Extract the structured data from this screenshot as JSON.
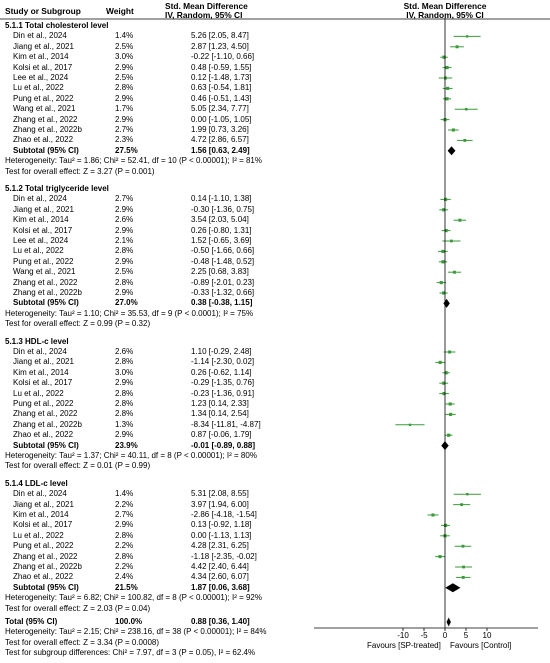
{
  "header": {
    "study_col": "Study or Subgroup",
    "weight_col": "Weight",
    "smd_title": "Std. Mean Difference",
    "smd_sub": "IV, Random, 95% CI",
    "plot_title": "Std. Mean Difference",
    "plot_sub": "IV, Random, 95% CI"
  },
  "axis": {
    "min": -15,
    "max": 15,
    "ticks": [
      "-10",
      "-5",
      "0",
      "5",
      "10"
    ],
    "tick_values": [
      -10,
      -5,
      0,
      5,
      10
    ],
    "left_label": "Favours [SP-treated]",
    "right_label": "Favours [Control]"
  },
  "colors": {
    "study_line": "#3a9a3a",
    "study_square": "#3a9a3a",
    "summary": "#000000"
  },
  "chart_data": {
    "type": "forest",
    "xlim": [
      -15,
      15
    ],
    "groups": [
      {
        "title": "5.1.1 Total cholesterol level",
        "studies": [
          {
            "name": "Din et al., 2024",
            "weight": "1.4%",
            "ci_text": "5.26 [2.05, 8.47]",
            "est": 5.26,
            "lo": 2.05,
            "hi": 8.47
          },
          {
            "name": "Jiang et al., 2021",
            "weight": "2.5%",
            "ci_text": "2.87 [1.23, 4.50]",
            "est": 2.87,
            "lo": 1.23,
            "hi": 4.5
          },
          {
            "name": "Kim et al., 2014",
            "weight": "3.0%",
            "ci_text": "-0.22 [-1.10, 0.66]",
            "est": -0.22,
            "lo": -1.1,
            "hi": 0.66
          },
          {
            "name": "Kolsi et al., 2017",
            "weight": "2.9%",
            "ci_text": "0.48 [-0.59, 1.55]",
            "est": 0.48,
            "lo": -0.59,
            "hi": 1.55
          },
          {
            "name": "Lee et al., 2024",
            "weight": "2.5%",
            "ci_text": "0.12 [-1.48, 1.73]",
            "est": 0.12,
            "lo": -1.48,
            "hi": 1.73
          },
          {
            "name": "Lu et al., 2022",
            "weight": "2.8%",
            "ci_text": "0.63 [-0.54, 1.81]",
            "est": 0.63,
            "lo": -0.54,
            "hi": 1.81
          },
          {
            "name": "Pung et al., 2022",
            "weight": "2.9%",
            "ci_text": "0.46 [-0.51, 1.43]",
            "est": 0.46,
            "lo": -0.51,
            "hi": 1.43
          },
          {
            "name": "Wang et al., 2021",
            "weight": "1.7%",
            "ci_text": "5.05 [2.34, 7.77]",
            "est": 5.05,
            "lo": 2.34,
            "hi": 7.77
          },
          {
            "name": "Zhang et al., 2022",
            "weight": "2.9%",
            "ci_text": "0.00 [-1.05, 1.05]",
            "est": 0.0,
            "lo": -1.05,
            "hi": 1.05
          },
          {
            "name": "Zhang et al., 2022b",
            "weight": "2.7%",
            "ci_text": "1.99 [0.73, 3.26]",
            "est": 1.99,
            "lo": 0.73,
            "hi": 3.26
          },
          {
            "name": "Zhao et al., 2022",
            "weight": "2.3%",
            "ci_text": "4.72 [2.86, 6.57]",
            "est": 4.72,
            "lo": 2.86,
            "hi": 6.57
          }
        ],
        "subtotal": {
          "label": "Subtotal (95% CI)",
          "weight": "27.5%",
          "ci_text": "1.56 [0.63, 2.49]",
          "est": 1.56,
          "lo": 0.63,
          "hi": 2.49
        },
        "heterogeneity": "Heterogeneity: Tau² = 1.86; Chi² = 52.41, df = 10 (P < 0.00001); I² = 81%",
        "overall": "Test for overall effect: Z = 3.27 (P = 0.001)"
      },
      {
        "title": "5.1.2 Total triglyceride level",
        "studies": [
          {
            "name": "Din et al., 2024",
            "weight": "2.7%",
            "ci_text": "0.14 [-1.10, 1.38]",
            "est": 0.14,
            "lo": -1.1,
            "hi": 1.38
          },
          {
            "name": "Jiang et al., 2021",
            "weight": "2.9%",
            "ci_text": "-0.30 [-1.36, 0.75]",
            "est": -0.3,
            "lo": -1.36,
            "hi": 0.75
          },
          {
            "name": "Kim et al., 2014",
            "weight": "2.6%",
            "ci_text": "3.54 [2.03, 5.04]",
            "est": 3.54,
            "lo": 2.03,
            "hi": 5.04
          },
          {
            "name": "Kolsi et al., 2017",
            "weight": "2.9%",
            "ci_text": "0.26 [-0.80, 1.31]",
            "est": 0.26,
            "lo": -0.8,
            "hi": 1.31
          },
          {
            "name": "Lee et al., 2024",
            "weight": "2.1%",
            "ci_text": "1.52 [-0.65, 3.69]",
            "est": 1.52,
            "lo": -0.65,
            "hi": 3.69
          },
          {
            "name": "Lu et al., 2022",
            "weight": "2.8%",
            "ci_text": "-0.50 [-1.66, 0.66]",
            "est": -0.5,
            "lo": -1.66,
            "hi": 0.66
          },
          {
            "name": "Pung et al., 2022",
            "weight": "2.9%",
            "ci_text": "-0.48 [-1.48, 0.52]",
            "est": -0.48,
            "lo": -1.48,
            "hi": 0.52
          },
          {
            "name": "Wang et al., 2021",
            "weight": "2.5%",
            "ci_text": "2.25 [0.68, 3.83]",
            "est": 2.25,
            "lo": 0.68,
            "hi": 3.83
          },
          {
            "name": "Zhang et al., 2022",
            "weight": "2.8%",
            "ci_text": "-0.89 [-2.01, 0.23]",
            "est": -0.89,
            "lo": -2.01,
            "hi": 0.23
          },
          {
            "name": "Zhang et al., 2022b",
            "weight": "2.9%",
            "ci_text": "-0.33 [-1.32, 0.66]",
            "est": -0.33,
            "lo": -1.32,
            "hi": 0.66
          }
        ],
        "subtotal": {
          "label": "Subtotal (95% CI)",
          "weight": "27.0%",
          "ci_text": "0.38 [-0.38, 1.15]",
          "est": 0.38,
          "lo": -0.38,
          "hi": 1.15
        },
        "heterogeneity": "Heterogeneity: Tau² = 1.10; Chi² = 35.53, df = 9 (P < 0.0001); I² = 75%",
        "overall": "Test for overall effect: Z = 0.99 (P = 0.32)"
      },
      {
        "title": "5.1.3 HDL-c level",
        "studies": [
          {
            "name": "Din et al., 2024",
            "weight": "2.6%",
            "ci_text": "1.10 [-0.29, 2.48]",
            "est": 1.1,
            "lo": -0.29,
            "hi": 2.48
          },
          {
            "name": "Jiang et al., 2021",
            "weight": "2.8%",
            "ci_text": "-1.14 [-2.30, 0.02]",
            "est": -1.14,
            "lo": -2.3,
            "hi": 0.02
          },
          {
            "name": "Kim et al., 2014",
            "weight": "3.0%",
            "ci_text": "0.26 [-0.62, 1.14]",
            "est": 0.26,
            "lo": -0.62,
            "hi": 1.14
          },
          {
            "name": "Kolsi et al., 2017",
            "weight": "2.9%",
            "ci_text": "-0.29 [-1.35, 0.76]",
            "est": -0.29,
            "lo": -1.35,
            "hi": 0.76
          },
          {
            "name": "Lu et al., 2022",
            "weight": "2.8%",
            "ci_text": "-0.23 [-1.36, 0.91]",
            "est": -0.23,
            "lo": -1.36,
            "hi": 0.91
          },
          {
            "name": "Pung et al., 2022",
            "weight": "2.8%",
            "ci_text": "1.23 [0.14, 2.33]",
            "est": 1.23,
            "lo": 0.14,
            "hi": 2.33
          },
          {
            "name": "Zhang et al., 2022",
            "weight": "2.8%",
            "ci_text": "1.34 [0.14, 2.54]",
            "est": 1.34,
            "lo": 0.14,
            "hi": 2.54
          },
          {
            "name": "Zhang et al., 2022b",
            "weight": "1.3%",
            "ci_text": "-8.34 [-11.81, -4.87]",
            "est": -8.34,
            "lo": -11.81,
            "hi": -4.87
          },
          {
            "name": "Zhao et al., 2022",
            "weight": "2.9%",
            "ci_text": "0.87 [-0.06, 1.79]",
            "est": 0.87,
            "lo": -0.06,
            "hi": 1.79
          }
        ],
        "subtotal": {
          "label": "Subtotal (95% CI)",
          "weight": "23.9%",
          "ci_text": "-0.01 [-0.89, 0.88]",
          "est": -0.01,
          "lo": -0.89,
          "hi": 0.88
        },
        "heterogeneity": "Heterogeneity: Tau² = 1.37; Chi² = 40.11, df = 8 (P < 0.00001); I² = 80%",
        "overall": "Test for overall effect: Z = 0.01 (P = 0.99)"
      },
      {
        "title": "5.1.4 LDL-c level",
        "studies": [
          {
            "name": "Din et al., 2024",
            "weight": "1.4%",
            "ci_text": "5.31 [2.08, 8.55]",
            "est": 5.31,
            "lo": 2.08,
            "hi": 8.55
          },
          {
            "name": "Jiang et al., 2021",
            "weight": "2.2%",
            "ci_text": "3.97 [1.94, 6.00]",
            "est": 3.97,
            "lo": 1.94,
            "hi": 6.0
          },
          {
            "name": "Kim et al., 2014",
            "weight": "2.7%",
            "ci_text": "-2.86 [-4.18, -1.54]",
            "est": -2.86,
            "lo": -4.18,
            "hi": -1.54
          },
          {
            "name": "Kolsi et al., 2017",
            "weight": "2.9%",
            "ci_text": "0.13 [-0.92, 1.18]",
            "est": 0.13,
            "lo": -0.92,
            "hi": 1.18
          },
          {
            "name": "Lu et al., 2022",
            "weight": "2.8%",
            "ci_text": "0.00 [-1.13, 1.13]",
            "est": 0.0,
            "lo": -1.13,
            "hi": 1.13
          },
          {
            "name": "Pung et al., 2022",
            "weight": "2.2%",
            "ci_text": "4.28 [2.31, 6.25]",
            "est": 4.28,
            "lo": 2.31,
            "hi": 6.25
          },
          {
            "name": "Zhang et al., 2022",
            "weight": "2.8%",
            "ci_text": "-1.18 [-2.35, -0.02]",
            "est": -1.18,
            "lo": -2.35,
            "hi": -0.02
          },
          {
            "name": "Zhang et al., 2022b",
            "weight": "2.2%",
            "ci_text": "4.42 [2.40, 6.44]",
            "est": 4.42,
            "lo": 2.4,
            "hi": 6.44
          },
          {
            "name": "Zhao et al., 2022",
            "weight": "2.4%",
            "ci_text": "4.34 [2.60, 6.07]",
            "est": 4.34,
            "lo": 2.6,
            "hi": 6.07
          }
        ],
        "subtotal": {
          "label": "Subtotal (95% CI)",
          "weight": "21.5%",
          "ci_text": "1.87 [0.06, 3.68]",
          "est": 1.87,
          "lo": 0.06,
          "hi": 3.68
        },
        "heterogeneity": "Heterogeneity: Tau² = 6.82; Chi² = 100.82, df = 8 (P < 0.00001); I² = 92%",
        "overall": "Test for overall effect: Z = 2.03 (P = 0.04)"
      }
    ],
    "total": {
      "label": "Total (95% CI)",
      "weight": "100.0%",
      "ci_text": "0.88 [0.36, 1.40]",
      "est": 0.88,
      "lo": 0.36,
      "hi": 1.4
    },
    "total_heterogeneity": "Heterogeneity: Tau² = 2.15; Chi² = 238.16, df = 38 (P < 0.00001); I² = 84%",
    "total_overall": "Test for overall effect: Z = 3.34 (P = 0.0008)",
    "subgroup_diff": "Test for subgroup differences: Chi² = 7.97, df = 3 (P = 0.05), I² = 62.4%"
  }
}
